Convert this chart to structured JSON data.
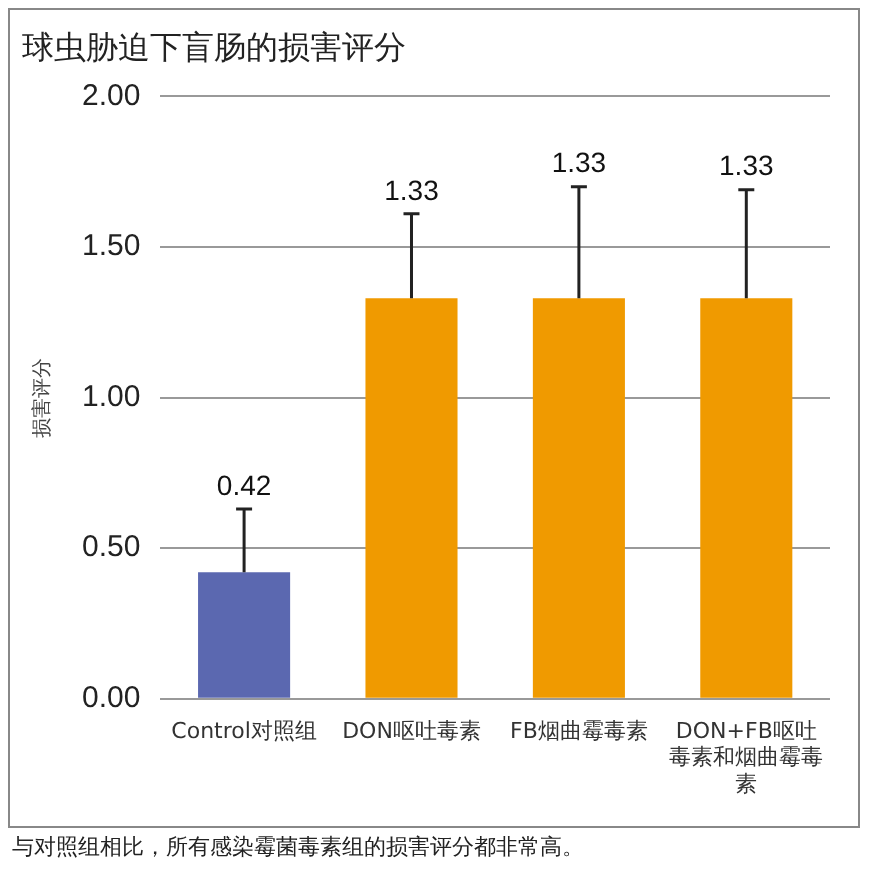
{
  "chart_data": {
    "type": "bar",
    "title": "球虫胁迫下盲肠的损害评分",
    "ylabel": "损害评分",
    "categories": [
      "Control对照组",
      "DON呕吐毒素",
      "FB烟曲霉毒素",
      "DON+FB呕吐毒素和烟曲霉毒素"
    ],
    "values": [
      0.42,
      1.33,
      1.33,
      1.33
    ],
    "colors": [
      "#5b68b0",
      "#f09a00",
      "#f09a00",
      "#f09a00"
    ],
    "errors": [
      [
        0.42,
        0.63
      ],
      [
        1.33,
        1.61
      ],
      [
        1.33,
        1.7
      ],
      [
        1.33,
        1.69
      ]
    ],
    "ylim": [
      0,
      2
    ],
    "yticks": [
      {
        "value": 0,
        "label": "0.00"
      },
      {
        "value": 0.5,
        "label": "0.50"
      },
      {
        "value": 1,
        "label": "1.00"
      },
      {
        "value": 1.5,
        "label": "1.50"
      },
      {
        "value": 2,
        "label": "2.00"
      }
    ],
    "grid": "y",
    "annotations": [
      "与对照组相比，所有感染霉菌毒素组的损害评分都非常高。",
      {
        "text": "0.42",
        "x": "Control对照组",
        "y": 0.63
      },
      {
        "text": "1.33",
        "x": "DON呕吐毒素",
        "y": 1.61
      },
      {
        "text": "1.33",
        "x": "FB烟曲霉毒素",
        "y": 1.7
      },
      {
        "text": "1.33",
        "x": "DON+FB呕吐毒素和烟曲霉毒素",
        "y": 1.69
      }
    ]
  }
}
